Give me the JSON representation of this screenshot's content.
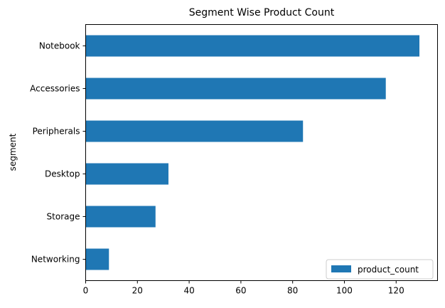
{
  "chart_data": {
    "type": "bar",
    "orientation": "horizontal",
    "title": "Segment Wise Product Count",
    "ylabel": "segment",
    "xlabel": "",
    "categories": [
      "Notebook",
      "Accessories",
      "Peripherals",
      "Desktop",
      "Storage",
      "Networking"
    ],
    "series": [
      {
        "name": "product_count",
        "values": [
          129,
          116,
          84,
          32,
          27,
          9
        ],
        "color": "#1f77b4"
      }
    ],
    "xlim": [
      0,
      136
    ],
    "xticks": [
      0,
      20,
      40,
      60,
      80,
      100,
      120
    ],
    "grid": false,
    "legend_position": "lower-right"
  }
}
